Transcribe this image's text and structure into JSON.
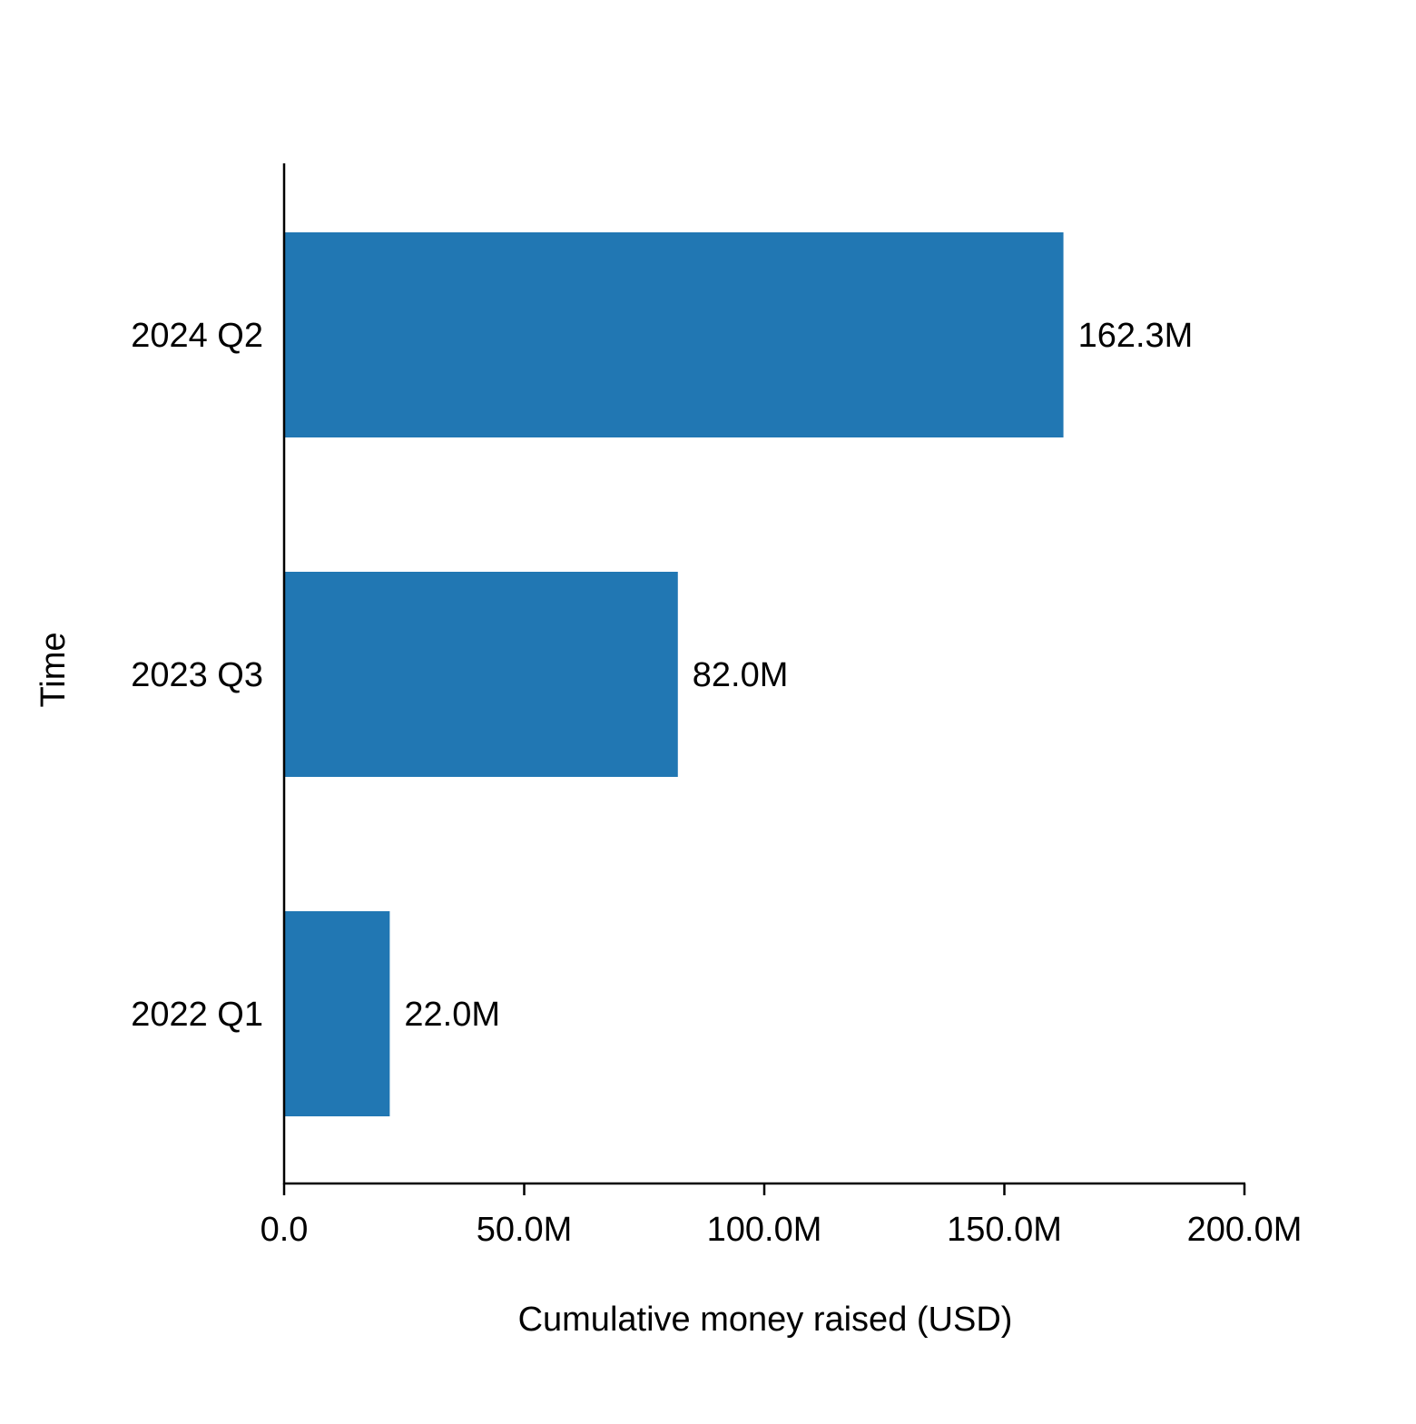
{
  "chart_data": {
    "type": "bar",
    "orientation": "horizontal",
    "title": "",
    "xlabel": "Cumulative money raised (USD)",
    "ylabel": "Time",
    "categories": [
      "2024 Q2",
      "2023 Q3",
      "2022 Q1"
    ],
    "values": [
      162.3,
      82.0,
      22.0
    ],
    "data_labels": [
      "162.3M",
      "82.0M",
      "22.0M"
    ],
    "value_unit": "millions USD",
    "xlim": [
      0,
      200
    ],
    "xticks": [
      0,
      50,
      100,
      150,
      200
    ],
    "xtick_labels": [
      "0.0",
      "50.0M",
      "100.0M",
      "150.0M",
      "200.0M"
    ],
    "grid": false,
    "legend": "none",
    "bar_color": "#2177b3",
    "axis_color": "#000000"
  }
}
